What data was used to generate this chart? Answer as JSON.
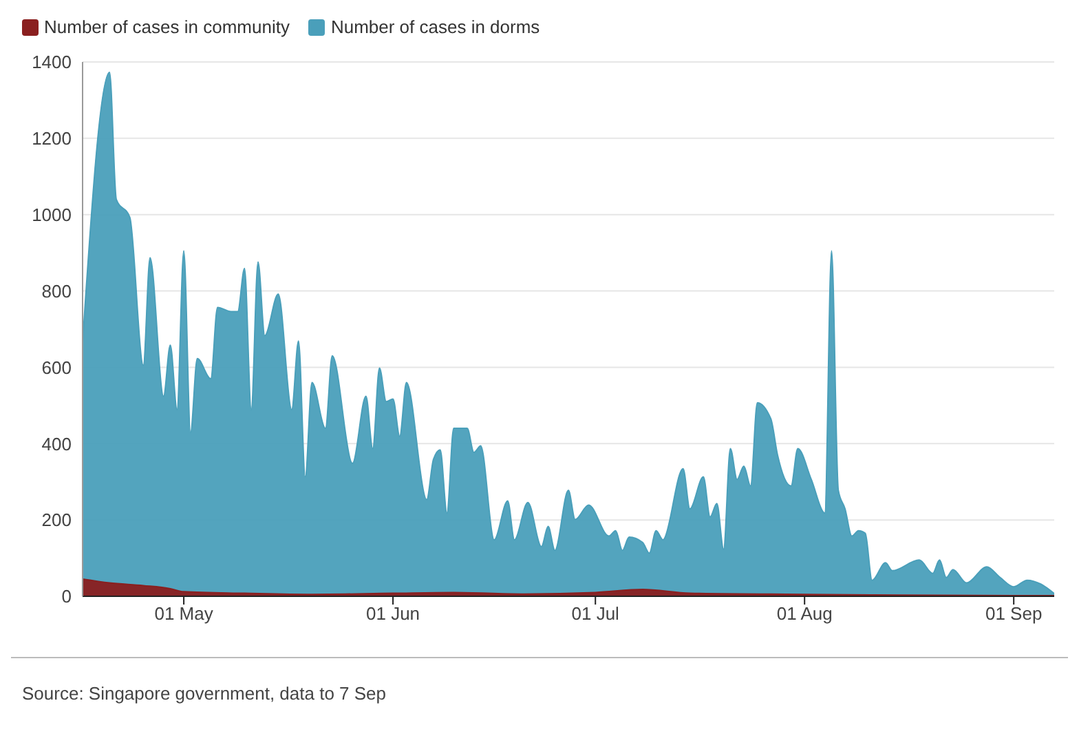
{
  "chart_data": {
    "type": "area",
    "legend": "top left",
    "grid": "y",
    "xlim": [
      "--04-16",
      "--09-07"
    ],
    "xticks": [
      {
        "value": "--05-01",
        "label": "01 May"
      },
      {
        "value": "--06-01",
        "label": "01 Jun"
      },
      {
        "value": "--07-01",
        "label": "01 Jul"
      },
      {
        "value": "--08-01",
        "label": "01 Aug"
      },
      {
        "value": "--09-01",
        "label": "01 Sep"
      }
    ],
    "ylim": [
      0,
      1400
    ],
    "yticks": [
      0,
      200,
      400,
      600,
      800,
      1000,
      1200,
      1400
    ],
    "annotations": [
      "Source: Singapore government, data to 7 Sep"
    ],
    "series": [
      {
        "name": "Number of cases in community",
        "color": "#8a1f1f",
        "x": [
          "--04-16",
          "--04-20",
          "--04-25",
          "--04-29",
          "--05-01",
          "--05-10",
          "--05-20",
          "--06-01",
          "--06-10",
          "--06-20",
          "--07-01",
          "--07-08",
          "--07-15",
          "--08-01",
          "--08-15",
          "--09-01",
          "--09-07"
        ],
        "values": [
          45,
          35,
          28,
          20,
          12,
          8,
          5,
          8,
          10,
          6,
          10,
          18,
          8,
          5,
          3,
          2,
          2
        ]
      },
      {
        "name": "Number of cases in dorms",
        "color": "#4a9fba",
        "x": [
          "--04-16",
          "--04-20",
          "--04-21",
          "--04-23",
          "--04-25",
          "--04-26",
          "--04-28",
          "--04-29",
          "--04-30",
          "--05-01",
          "--05-02",
          "--05-03",
          "--05-05",
          "--05-06",
          "--05-08",
          "--05-09",
          "--05-10",
          "--05-11",
          "--05-12",
          "--05-13",
          "--05-15",
          "--05-17",
          "--05-18",
          "--05-19",
          "--05-20",
          "--05-22",
          "--05-23",
          "--05-26",
          "--05-28",
          "--05-29",
          "--05-30",
          "--05-31",
          "--06-01",
          "--06-02",
          "--06-03",
          "--06-06",
          "--06-07",
          "--06-08",
          "--06-09",
          "--06-10",
          "--06-12",
          "--06-13",
          "--06-14",
          "--06-16",
          "--06-18",
          "--06-19",
          "--06-21",
          "--06-23",
          "--06-24",
          "--06-25",
          "--06-27",
          "--06-28",
          "--06-30",
          "--07-03",
          "--07-04",
          "--07-05",
          "--07-06",
          "--07-08",
          "--07-09",
          "--07-10",
          "--07-11",
          "--07-14",
          "--07-15",
          "--07-17",
          "--07-18",
          "--07-19",
          "--07-20",
          "--07-21",
          "--07-22",
          "--07-23",
          "--07-24",
          "--07-25",
          "--07-27",
          "--07-28",
          "--07-30",
          "--07-31",
          "--08-02",
          "--08-04",
          "--08-05",
          "--08-06",
          "--08-07",
          "--08-08",
          "--08-09",
          "--08-10",
          "--08-11",
          "--08-13",
          "--08-14",
          "--08-18",
          "--08-20",
          "--08-21",
          "--08-22",
          "--08-23",
          "--08-25",
          "--08-28",
          "--08-30",
          "--09-01",
          "--09-03",
          "--09-05",
          "--09-07"
        ],
        "values": [
          665,
          1373,
          1040,
          993,
          605,
          887,
          524,
          658,
          489,
          905,
          429,
          623,
          570,
          757,
          746,
          746,
          859,
          489,
          876,
          683,
          792,
          489,
          669,
          313,
          560,
          440,
          630,
          348,
          524,
          387,
          598,
          510,
          517,
          419,
          560,
          253,
          359,
          384,
          218,
          440,
          440,
          377,
          394,
          148,
          250,
          148,
          246,
          130,
          183,
          120,
          278,
          201,
          239,
          158,
          172,
          120,
          155,
          141,
          113,
          172,
          148,
          334,
          229,
          313,
          208,
          243,
          123,
          387,
          306,
          341,
          289,
          507,
          465,
          370,
          289,
          387,
          306,
          218,
          905,
          278,
          229,
          158,
          172,
          165,
          42,
          88,
          67,
          95,
          60,
          95,
          49,
          70,
          35,
          77,
          49,
          25,
          42,
          32,
          7
        ]
      }
    ]
  }
}
